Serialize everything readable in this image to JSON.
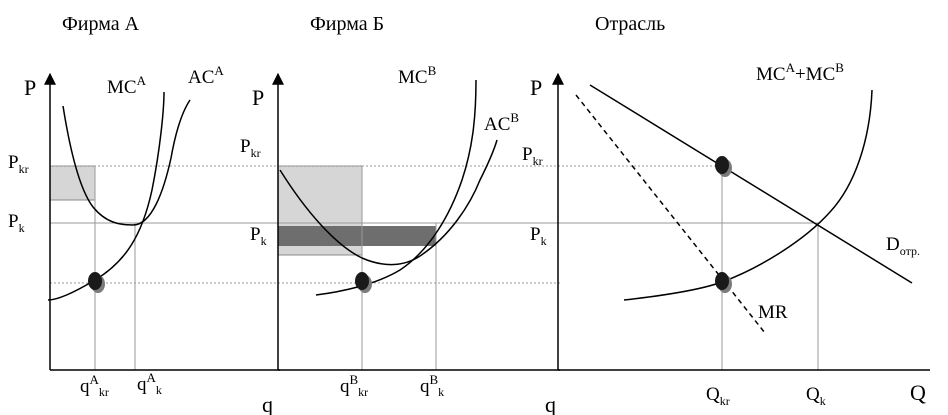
{
  "panels": {
    "firm_a": {
      "title": "Фирма А",
      "axis_y": "P",
      "axis_x": "q",
      "price_high": {
        "main": "P",
        "sub": "kr"
      },
      "price_comp": {
        "main": "P",
        "sub": "k"
      },
      "curve_mc": {
        "main": "MC",
        "sup": "A"
      },
      "curve_ac": {
        "main": "AC",
        "sup": "A"
      },
      "qty_kr": {
        "main": "q",
        "sup": "A",
        "sub": "kr"
      },
      "qty_k": {
        "main": "q",
        "sup": "A",
        "sub": "k"
      }
    },
    "firm_b": {
      "title": "Фирма Б",
      "axis_y": "P",
      "axis_x": "q",
      "price_high": {
        "main": "P",
        "sub": "kr"
      },
      "price_comp": {
        "main": "P",
        "sub": "k"
      },
      "curve_mc": {
        "main": "MC",
        "sup": "B"
      },
      "curve_ac": {
        "main": "AC",
        "sup": "B"
      },
      "qty_kr": {
        "main": "q",
        "sup": "B",
        "sub": "kr"
      },
      "qty_k": {
        "main": "q",
        "sup": "B",
        "sub": "k"
      }
    },
    "industry": {
      "title": "Отрасль",
      "axis_y": "P",
      "axis_x": "Q",
      "price_high": {
        "main": "P",
        "sub": "kr"
      },
      "price_comp": {
        "main": "P",
        "sub": "k"
      },
      "curve_mc": {
        "mc": "MC",
        "a": "A",
        "plus": "+MC",
        "b": "B"
      },
      "demand": {
        "main": "D",
        "sub": "отр."
      },
      "mr": "MR",
      "qty_kr": {
        "main": "Q",
        "sub": "kr"
      },
      "qty_k": {
        "main": "Q",
        "sub": "k"
      }
    }
  },
  "colors": {
    "line": "#000000",
    "guide": "#9a9a9a",
    "shade_light": "#d6d6d6",
    "shade_dark": "#6e6e6e",
    "point": "#1a1a1a"
  }
}
